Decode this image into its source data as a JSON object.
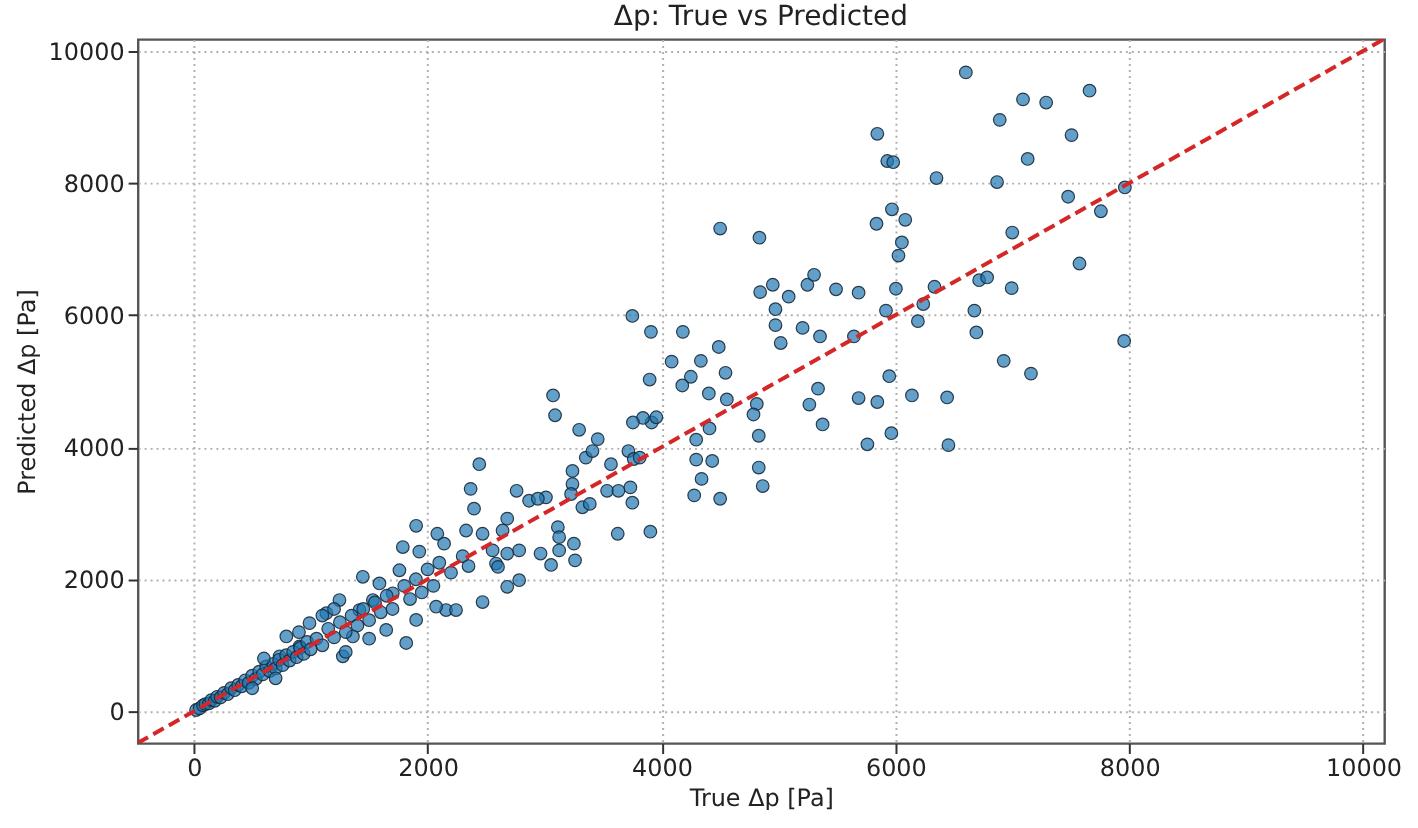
{
  "chart_data": {
    "type": "scatter",
    "title": "Δp: True vs Predicted",
    "xlabel": "True Δp [Pa]",
    "ylabel": "Predicted Δp [Pa]",
    "xlim": [
      -480,
      10180
    ],
    "ylim": [
      -480,
      10180
    ],
    "xticks": [
      0,
      2000,
      4000,
      6000,
      8000,
      10000
    ],
    "yticks": [
      0,
      2000,
      4000,
      6000,
      8000,
      10000
    ],
    "grid": true,
    "marker": "circle",
    "series": [
      {
        "type": "scatter",
        "color": "#1f77b4",
        "x": [
          6603,
          7092,
          7290,
          7661,
          6893,
          7507,
          7132,
          6352,
          6870,
          7478,
          7758,
          7963,
          7000,
          7575,
          6335,
          6717,
          6785,
          6995,
          6676,
          6693,
          6927,
          7160,
          7957,
          6443,
          6454,
          5846,
          5931,
          5982,
          5971,
          5839,
          6085,
          6056,
          6027,
          4502,
          4838,
          4844,
          4952,
          5088,
          5248,
          5305,
          5493,
          5686,
          6005,
          5920,
          6239,
          6193,
          4975,
          4975,
          5020,
          5207,
          5356,
          5646,
          3751,
          3910,
          4183,
          4490,
          4087,
          4337,
          4251,
          4178,
          3899,
          4548,
          4405,
          4559,
          4815,
          3073,
          3090,
          5339,
          5378,
          5265,
          5686,
          5846,
          5948,
          6142,
          5966,
          5761,
          4787,
          4832,
          4832,
          4866,
          4297,
          4297,
          4434,
          4343,
          4280,
          4502,
          4411,
          3916,
          3956,
          3842,
          3756,
          3717,
          3763,
          3814,
          3568,
          3734,
          3751,
          3626,
          3905,
          3353,
          3410,
          3455,
          3296,
          3239,
          3239,
          3227,
          3324,
          3387,
          3535,
          3632,
          3012,
          2966,
          3056,
          3114,
          3125,
          3251,
          3261,
          3125,
          2761,
          2681,
          2641,
          2681,
          2783,
          2681,
          2783,
          2585,
          2868,
          2943,
          2442,
          2368,
          2397,
          2083,
          2141,
          1902,
          1788,
          1929,
          2329,
          2470,
          2556,
          2602,
          2470,
          2158,
          2243,
          2073,
          1902,
          1759,
          1588,
          1702,
          1446,
          1246,
          990,
          1134,
          1417,
          1532,
          1275,
          1817,
          1361,
          1646,
          792,
          734,
          905,
          20,
          50,
          80,
          100,
          130,
          150,
          180,
          200,
          230,
          260,
          290,
          320,
          350,
          380,
          410,
          440,
          470,
          500,
          530,
          560,
          590,
          620,
          650,
          680,
          700,
          730,
          760,
          790,
          820,
          850,
          880,
          910,
          940,
          970,
          1000,
          1050,
          1100,
          1150,
          1200,
          1250,
          1300,
          1350,
          1400,
          1450,
          1500,
          1550,
          1600,
          1650,
          1700,
          1800,
          1850,
          1900,
          1950,
          2000,
          2050,
          2100,
          2200,
          2300,
          2350,
          1100,
          1200,
          1300,
          1500,
          600,
          900,
          500,
          700
        ],
        "values": [
          9675,
          9266,
          9218,
          9398,
          8956,
          8725,
          8364,
          8075,
          8014,
          7792,
          7572,
          7933,
          7250,
          6781,
          6429,
          6528,
          6570,
          6408,
          6068,
          5737,
          5307,
          5114,
          5608,
          4753,
          4031,
          8745,
          8333,
          8315,
          7602,
          7383,
          7443,
          7100,
          6901,
          7310,
          7172,
          6348,
          6459,
          6279,
          6459,
          6610,
          6390,
          6339,
          6399,
          6068,
          6167,
          5908,
          6089,
          5848,
          5577,
          5806,
          5677,
          5677,
          5987,
          5746,
          5746,
          5517,
          5295,
          5307,
          5066,
          4934,
          5024,
          5126,
          4813,
          4723,
          4654,
          4783,
          4483,
          4886,
          4344,
          4645,
          4744,
          4684,
          5075,
          4783,
          4212,
          4043,
          4495,
          4173,
          3691,
          3411,
          4113,
          3812,
          3791,
          3520,
          3270,
          3219,
          4284,
          4374,
          4453,
          4443,
          4374,
          3941,
          3821,
          3842,
          3742,
          3391,
          3159,
          2689,
          2720,
          3842,
          3941,
          4122,
          4263,
          3640,
          3442,
          3291,
          3090,
          3141,
          3339,
          3339,
          3240,
          2389,
          2217,
          2789,
          2638,
          2539,
          2286,
          2437,
          3339,
          2918,
          2738,
          2389,
          2437,
          1886,
          1986,
          2238,
          3189,
          3219,
          3742,
          3369,
          3069,
          2689,
          2539,
          2809,
          2488,
          2419,
          2738,
          2689,
          2437,
          2187,
          1655,
          1534,
          1534,
          1585,
          1384,
          2136,
          1937,
          1787,
          2037,
          1685,
          1336,
          1486,
          1534,
          1685,
          833,
          1035,
          1134,
          1233,
          1134,
          833,
          984,
          20,
          45,
          90,
          110,
          120,
          170,
          160,
          220,
          210,
          280,
          260,
          350,
          320,
          400,
          380,
          470,
          430,
          540,
          490,
          600,
          560,
          680,
          610,
          720,
          650,
          780,
          700,
          850,
          770,
          900,
          820,
          960,
          870,
          1050,
          940,
          1100,
          1000,
          1250,
          1120,
          1350,
          1200,
          1450,
          1300,
          1550,
          1380,
          1650,
          1500,
          1750,
          1550,
          1900,
          1700,
          2000,
          1800,
          2150,
          1900,
          2250,
          2100,
          2350,
          2200,
          1450,
          1550,
          900,
          1100,
          800,
          1200,
          350,
          500
        ]
      },
      {
        "type": "line",
        "color": "#d62728",
        "line_style": "dashed",
        "marker": "none",
        "x": [
          -480,
          10180
        ],
        "values": [
          -480,
          10180
        ]
      }
    ]
  }
}
